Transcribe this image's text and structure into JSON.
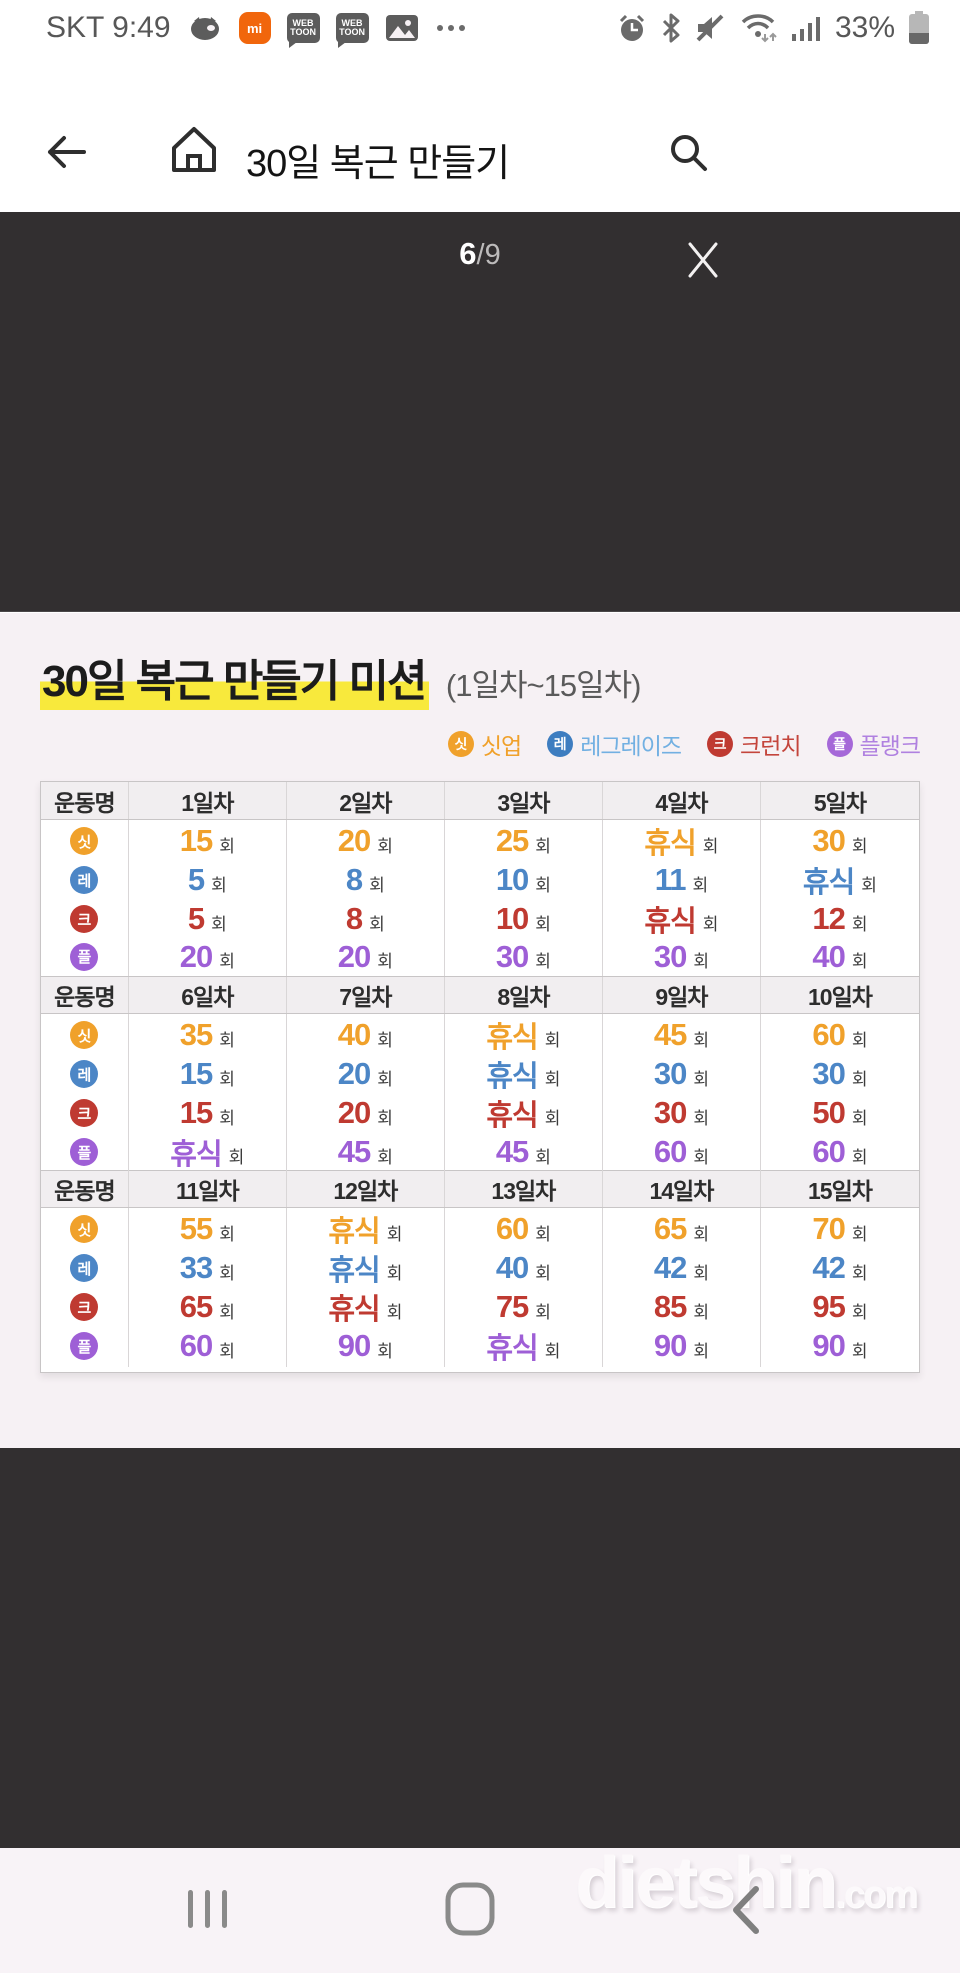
{
  "status_bar": {
    "carrier_time": "SKT 9:49",
    "battery_percent": "33%",
    "left_icons": [
      "pig-app-icon",
      "mi-fit-icon",
      "webtoon-icon",
      "webtoon-icon",
      "gallery-icon",
      "more-notifications-icon"
    ],
    "right_icons": [
      "alarm-icon",
      "bluetooth-icon",
      "mute-icon",
      "wifi-icon",
      "signal-icon",
      "battery-icon"
    ],
    "mi_label": "mi",
    "webtoon_line1": "WEB",
    "webtoon_line2": "TOON"
  },
  "nav_bar": {
    "title": "30일 복근 만들기"
  },
  "viewer": {
    "page_current": "6",
    "page_separator": "/",
    "page_total": "9"
  },
  "content": {
    "title": "30일 복근 만들기 미션",
    "subtitle": "(1일차~15일차)",
    "highlight_color": "#f8e93c",
    "legend": [
      {
        "abbr": "싯",
        "label": "싯업",
        "circle_color": "#f0a12b",
        "label_color": "#f0a12b"
      },
      {
        "abbr": "레",
        "label": "레그레이즈",
        "circle_color": "#3d7dc0",
        "label_color": "#72b0e2"
      },
      {
        "abbr": "크",
        "label": "크런치",
        "circle_color": "#bf3a31",
        "label_color": "#c4453c"
      },
      {
        "abbr": "플",
        "label": "플랭크",
        "circle_color": "#a568d8",
        "label_color": "#b081e0"
      }
    ],
    "table": {
      "name_header": "운동명",
      "unit": "회",
      "rest_label": "휴식",
      "exercises": {
        "situp": {
          "abbr": "싯",
          "color": "#f0a12b"
        },
        "legraise": {
          "abbr": "레",
          "color": "#4c86c6"
        },
        "crunch": {
          "abbr": "크",
          "color": "#bf3a31"
        },
        "plank": {
          "abbr": "플",
          "color": "#9e5fd6"
        }
      },
      "blocks": [
        {
          "days": [
            "1일차",
            "2일차",
            "3일차",
            "4일차",
            "5일차"
          ],
          "rows": [
            {
              "exercise": "situp",
              "values": [
                "15",
                "20",
                "25",
                "휴식",
                "30"
              ]
            },
            {
              "exercise": "legraise",
              "values": [
                "5",
                "8",
                "10",
                "11",
                "휴식"
              ]
            },
            {
              "exercise": "crunch",
              "values": [
                "5",
                "8",
                "10",
                "휴식",
                "12"
              ]
            },
            {
              "exercise": "plank",
              "values": [
                "20",
                "20",
                "30",
                "30",
                "40"
              ]
            }
          ]
        },
        {
          "days": [
            "6일차",
            "7일차",
            "8일차",
            "9일차",
            "10일차"
          ],
          "rows": [
            {
              "exercise": "situp",
              "values": [
                "35",
                "40",
                "휴식",
                "45",
                "60"
              ]
            },
            {
              "exercise": "legraise",
              "values": [
                "15",
                "20",
                "휴식",
                "30",
                "30"
              ]
            },
            {
              "exercise": "crunch",
              "values": [
                "15",
                "20",
                "휴식",
                "30",
                "50"
              ]
            },
            {
              "exercise": "plank",
              "values": [
                "휴식",
                "45",
                "45",
                "60",
                "60"
              ]
            }
          ]
        },
        {
          "days": [
            "11일차",
            "12일차",
            "13일차",
            "14일차",
            "15일차"
          ],
          "rows": [
            {
              "exercise": "situp",
              "values": [
                "55",
                "휴식",
                "60",
                "65",
                "70"
              ]
            },
            {
              "exercise": "legraise",
              "values": [
                "33",
                "휴식",
                "40",
                "42",
                "42"
              ]
            },
            {
              "exercise": "crunch",
              "values": [
                "65",
                "휴식",
                "75",
                "85",
                "95"
              ]
            },
            {
              "exercise": "plank",
              "values": [
                "60",
                "90",
                "휴식",
                "90",
                "90"
              ]
            }
          ]
        }
      ]
    }
  },
  "bottom_nav": {
    "watermark_main": "dietshin",
    "watermark_suffix": ".com",
    "icons": [
      "recent-apps-icon",
      "home-nav-icon",
      "back-nav-icon"
    ]
  }
}
